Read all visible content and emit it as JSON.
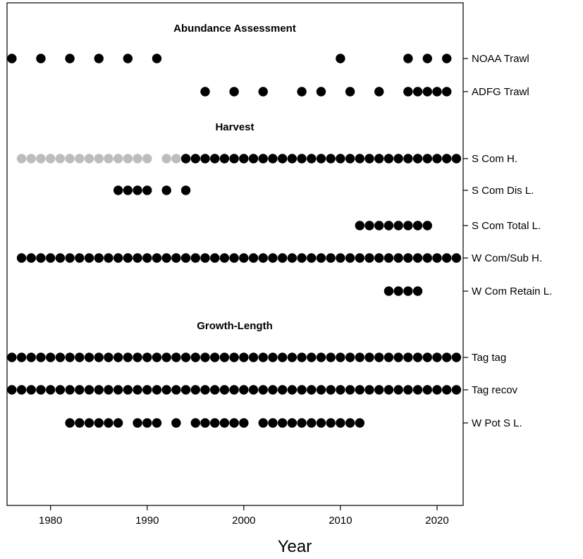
{
  "chart_data": {
    "type": "scatter",
    "xlabel": "Year",
    "xlim": [
      1975.5,
      2022.7
    ],
    "x_ticks": [
      1980,
      1990,
      2000,
      2010,
      2020
    ],
    "grid": false,
    "legend": "none",
    "colors": {
      "observed": "#000000",
      "alternate": "#bdbdbd",
      "frame": "#000000"
    },
    "sections": [
      {
        "title": "Abundance Assessment",
        "rows": [
          {
            "label": "NOAA Trawl",
            "years": [
              1976,
              1979,
              1982,
              1985,
              1988,
              1991,
              2010,
              2017,
              2019,
              2021
            ]
          },
          {
            "label": "ADFG Trawl",
            "years": [
              1996,
              1999,
              2002,
              2006,
              2008,
              2011,
              2014,
              2017,
              2018,
              2019,
              2020,
              2021
            ]
          }
        ]
      },
      {
        "title": "Harvest",
        "rows": [
          {
            "label": "S Com H.",
            "years": [
              1994,
              1995,
              1996,
              1997,
              1998,
              1999,
              2000,
              2001,
              2002,
              2003,
              2004,
              2005,
              2006,
              2007,
              2008,
              2009,
              2010,
              2011,
              2012,
              2013,
              2014,
              2015,
              2016,
              2017,
              2018,
              2019,
              2020,
              2021,
              2022
            ],
            "alt_years": [
              1977,
              1978,
              1979,
              1980,
              1981,
              1982,
              1983,
              1984,
              1985,
              1986,
              1987,
              1988,
              1989,
              1990,
              1992,
              1993
            ]
          },
          {
            "label": "S Com Dis L.",
            "years": [
              1987,
              1988,
              1989,
              1990,
              1992,
              1994
            ]
          },
          {
            "label": "S Com Total L.",
            "years": [
              2012,
              2013,
              2014,
              2015,
              2016,
              2017,
              2018,
              2019
            ]
          },
          {
            "label": "W Com/Sub H.",
            "years": [
              1977,
              1978,
              1979,
              1980,
              1981,
              1982,
              1983,
              1984,
              1985,
              1986,
              1987,
              1988,
              1989,
              1990,
              1991,
              1992,
              1993,
              1994,
              1995,
              1996,
              1997,
              1998,
              1999,
              2000,
              2001,
              2002,
              2003,
              2004,
              2005,
              2006,
              2007,
              2008,
              2009,
              2010,
              2011,
              2012,
              2013,
              2014,
              2015,
              2016,
              2017,
              2018,
              2019,
              2020,
              2021,
              2022
            ]
          },
          {
            "label": "W Com Retain L.",
            "years": [
              2015,
              2016,
              2017,
              2018
            ]
          }
        ]
      },
      {
        "title": "Growth-Length",
        "rows": [
          {
            "label": "Tag tag",
            "years": [
              1976,
              1977,
              1978,
              1979,
              1980,
              1981,
              1982,
              1983,
              1984,
              1985,
              1986,
              1987,
              1988,
              1989,
              1990,
              1991,
              1992,
              1993,
              1994,
              1995,
              1996,
              1997,
              1998,
              1999,
              2000,
              2001,
              2002,
              2003,
              2004,
              2005,
              2006,
              2007,
              2008,
              2009,
              2010,
              2011,
              2012,
              2013,
              2014,
              2015,
              2016,
              2017,
              2018,
              2019,
              2020,
              2021,
              2022
            ]
          },
          {
            "label": "Tag recov",
            "years": [
              1976,
              1977,
              1978,
              1979,
              1980,
              1981,
              1982,
              1983,
              1984,
              1985,
              1986,
              1987,
              1988,
              1989,
              1990,
              1991,
              1992,
              1993,
              1994,
              1995,
              1996,
              1997,
              1998,
              1999,
              2000,
              2001,
              2002,
              2003,
              2004,
              2005,
              2006,
              2007,
              2008,
              2009,
              2010,
              2011,
              2012,
              2013,
              2014,
              2015,
              2016,
              2017,
              2018,
              2019,
              2020,
              2021,
              2022
            ]
          },
          {
            "label": "W Pot S L.",
            "years": [
              1982,
              1983,
              1984,
              1985,
              1986,
              1987,
              1989,
              1990,
              1991,
              1993,
              1995,
              1996,
              1997,
              1998,
              1999,
              2000,
              2002,
              2003,
              2004,
              2005,
              2006,
              2007,
              2008,
              2009,
              2010,
              2011,
              2012
            ]
          }
        ]
      }
    ]
  }
}
